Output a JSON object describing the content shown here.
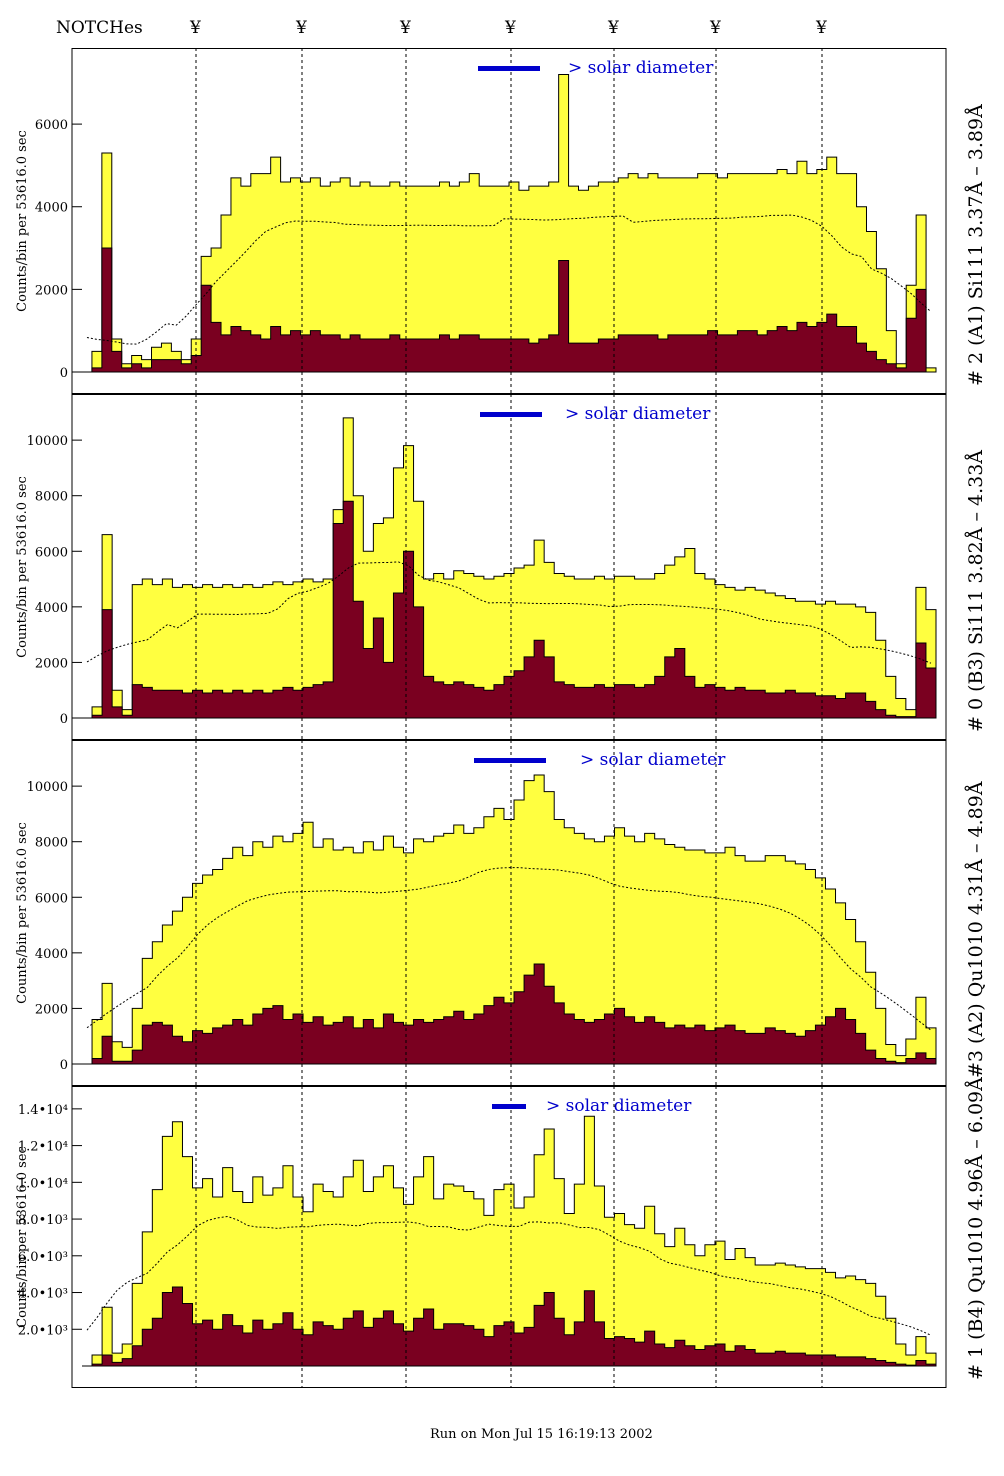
{
  "header": {
    "notches_label": "NOTCHes",
    "notch_symbol": "¥",
    "notch_x": [
      196,
      302,
      406,
      511,
      614,
      716,
      822
    ]
  },
  "footer": {
    "run_text": "Run on Mon Jul 15 16:19:13 2002"
  },
  "colors": {
    "fill": "#ffff40",
    "dark": "#7a0020",
    "line": "#000000",
    "accent": "#0000cc"
  },
  "chart_data": [
    {
      "type": "area",
      "title": "",
      "side_label": "# 2 (A1) Si111  3.37Å – 3.89Å",
      "ylabel": "Counts/bin per  53616.0 sec",
      "annotation": "> solar diameter",
      "yticks": [
        "0",
        "2000",
        "4000",
        "6000"
      ],
      "ylim": [
        0,
        7600
      ],
      "series": [
        {
          "values": [
            0,
            500,
            5300,
            800,
            200,
            400,
            300,
            600,
            700,
            500,
            300,
            800,
            2800,
            3000,
            3800,
            4700,
            4500,
            4800,
            4800,
            5200,
            4600,
            4700,
            4600,
            4700,
            4500,
            4600,
            4700,
            4500,
            4600,
            4500,
            4500,
            4600,
            4500,
            4500,
            4500,
            4500,
            4600,
            4500,
            4600,
            4800,
            4500,
            4500,
            4500,
            4600,
            4400,
            4500,
            4500,
            4600,
            7200,
            4500,
            4400,
            4500,
            4600,
            4600,
            4700,
            4800,
            4700,
            4800,
            4700,
            4700,
            4700,
            4700,
            4800,
            4800,
            4700,
            4800,
            4800,
            4800,
            4800,
            4800,
            4900,
            4800,
            5100,
            4800,
            4900,
            5200,
            4800,
            4800,
            4000,
            3400,
            2500,
            1000,
            200,
            2100,
            3800,
            100
          ]
        },
        {
          "values": [
            0,
            100,
            3000,
            500,
            100,
            200,
            100,
            300,
            300,
            300,
            200,
            400,
            2100,
            1200,
            900,
            1100,
            1000,
            900,
            800,
            1100,
            900,
            1000,
            900,
            1000,
            900,
            900,
            800,
            900,
            800,
            800,
            800,
            900,
            800,
            800,
            800,
            800,
            900,
            800,
            900,
            900,
            800,
            800,
            800,
            800,
            800,
            700,
            800,
            900,
            2700,
            700,
            700,
            700,
            800,
            800,
            900,
            900,
            900,
            900,
            800,
            900,
            900,
            900,
            900,
            1000,
            900,
            900,
            1000,
            1000,
            900,
            1000,
            1100,
            1000,
            1200,
            1100,
            1200,
            1400,
            1100,
            1100,
            700,
            500,
            300,
            200,
            100,
            1300,
            2000,
            0
          ]
        }
      ]
    },
    {
      "type": "area",
      "title": "",
      "side_label": "# 0 (B3) Si111  3.82Å – 4.33Å",
      "ylabel": "Counts/bin per  53616.0 sec",
      "annotation": "> solar diameter",
      "yticks": [
        "0",
        "2000",
        "4000",
        "6000",
        "8000",
        "10000"
      ],
      "ylim": [
        0,
        11300
      ],
      "series": [
        {
          "values": [
            0,
            400,
            6600,
            1000,
            300,
            4800,
            5000,
            4800,
            5000,
            4700,
            4800,
            4700,
            4800,
            4700,
            4800,
            4700,
            4800,
            4700,
            4800,
            4900,
            4800,
            4900,
            5000,
            4900,
            5000,
            7500,
            10800,
            8000,
            6000,
            7000,
            7200,
            9000,
            9800,
            7800,
            5000,
            5200,
            5000,
            5300,
            5200,
            5100,
            5000,
            5100,
            5200,
            5400,
            5500,
            6400,
            5600,
            5200,
            5100,
            5000,
            5000,
            5100,
            5000,
            5100,
            5100,
            5000,
            5000,
            5200,
            5500,
            5800,
            6100,
            5200,
            5000,
            4800,
            4700,
            4600,
            4700,
            4600,
            4500,
            4400,
            4300,
            4200,
            4200,
            4100,
            4200,
            4100,
            4100,
            4000,
            3800,
            2800,
            1500,
            700,
            300,
            4700,
            3900
          ]
        },
        {
          "values": [
            0,
            100,
            3900,
            400,
            100,
            1200,
            1100,
            1000,
            1000,
            1000,
            900,
            1000,
            900,
            1000,
            900,
            1000,
            900,
            1000,
            900,
            1000,
            1100,
            1000,
            1100,
            1200,
            1300,
            7000,
            7800,
            4200,
            2500,
            3600,
            2000,
            4500,
            6000,
            4000,
            1500,
            1300,
            1200,
            1300,
            1200,
            1100,
            1000,
            1200,
            1500,
            1700,
            2200,
            2800,
            2200,
            1300,
            1200,
            1100,
            1100,
            1200,
            1100,
            1200,
            1200,
            1100,
            1200,
            1500,
            2200,
            2500,
            1500,
            1100,
            1200,
            1100,
            1000,
            1100,
            1000,
            1000,
            900,
            900,
            1000,
            900,
            900,
            800,
            800,
            700,
            900,
            900,
            600,
            300,
            100,
            50,
            50,
            2700,
            1800
          ]
        }
      ]
    },
    {
      "type": "area",
      "title": "",
      "side_label": "#3 (A2) Qu1010  4.31Å – 4.89Å",
      "ylabel": "Counts/bin per  53616.0 sec",
      "annotation": "> solar diameter",
      "yticks": [
        "0",
        "2000",
        "4000",
        "6000",
        "8000",
        "10000"
      ],
      "ylim": [
        0,
        11300
      ],
      "series": [
        {
          "values": [
            0,
            1600,
            2900,
            800,
            600,
            2000,
            3800,
            4400,
            5000,
            5500,
            6000,
            6500,
            6800,
            7000,
            7400,
            7800,
            7500,
            8000,
            7800,
            8200,
            8000,
            8300,
            8700,
            7800,
            8100,
            7700,
            7800,
            7600,
            8000,
            7700,
            8200,
            7800,
            7600,
            8100,
            8000,
            8200,
            8300,
            8600,
            8300,
            8500,
            8900,
            9200,
            8800,
            9500,
            10200,
            10400,
            9800,
            8800,
            8500,
            8300,
            8100,
            8000,
            8200,
            8500,
            8200,
            8000,
            8300,
            8100,
            7900,
            7800,
            7700,
            7700,
            7600,
            7600,
            7800,
            7500,
            7300,
            7300,
            7500,
            7500,
            7300,
            7200,
            7000,
            6700,
            6300,
            5800,
            5200,
            4400,
            3300,
            2000,
            700,
            300,
            900,
            2400,
            1300
          ]
        },
        {
          "values": [
            0,
            200,
            1000,
            100,
            100,
            500,
            1400,
            1500,
            1400,
            1000,
            800,
            1200,
            1100,
            1300,
            1400,
            1600,
            1400,
            1800,
            2000,
            2100,
            1600,
            1800,
            1500,
            1700,
            1400,
            1500,
            1700,
            1300,
            1600,
            1300,
            1800,
            1500,
            1400,
            1600,
            1500,
            1600,
            1700,
            1900,
            1600,
            1800,
            2100,
            2400,
            2200,
            2600,
            3200,
            3600,
            2800,
            2200,
            1800,
            1600,
            1500,
            1600,
            1800,
            2000,
            1700,
            1500,
            1700,
            1500,
            1300,
            1400,
            1300,
            1400,
            1200,
            1300,
            1400,
            1200,
            1100,
            1100,
            1300,
            1200,
            1100,
            1000,
            1200,
            1400,
            1700,
            2000,
            1600,
            1100,
            500,
            200,
            100,
            50,
            200,
            400,
            200
          ]
        }
      ]
    },
    {
      "type": "area",
      "title": "",
      "side_label": "# 1 (B4) Qu1010 4.96Å – 6.09Å",
      "ylabel": "Counts/bin per  53616.0 sec",
      "annotation": "> solar diameter",
      "yticks": [
        "2.0•10³",
        "4.0•10³",
        "6.0•10³",
        "8.0•10³",
        "1.0•10⁴",
        "1.2•10⁴",
        "1.4•10⁴"
      ],
      "ylim": [
        0,
        14700
      ],
      "series": [
        {
          "values": [
            0,
            600,
            3200,
            700,
            1200,
            4500,
            7300,
            9600,
            12500,
            13300,
            11400,
            9700,
            10200,
            9200,
            10800,
            9500,
            8900,
            10300,
            9300,
            9700,
            10900,
            9200,
            8400,
            9900,
            9500,
            9200,
            10300,
            11200,
            9500,
            10300,
            10900,
            9700,
            8800,
            10300,
            11400,
            9100,
            9900,
            9800,
            9500,
            9100,
            8200,
            9600,
            9900,
            8600,
            9200,
            11500,
            12900,
            10200,
            8300,
            9900,
            13600,
            9800,
            8100,
            8300,
            7700,
            7500,
            8700,
            7200,
            6500,
            7500,
            6600,
            6000,
            6600,
            6800,
            5800,
            6400,
            5900,
            5500,
            5500,
            5600,
            5500,
            5400,
            5300,
            5300,
            5100,
            4800,
            4900,
            4700,
            4500,
            3800,
            2600,
            1200,
            600,
            1600,
            700
          ]
        },
        {
          "values": [
            0,
            100,
            600,
            200,
            400,
            1100,
            2000,
            2600,
            4000,
            4300,
            3400,
            2300,
            2500,
            2000,
            2800,
            2200,
            1800,
            2500,
            2000,
            2300,
            2900,
            2000,
            1700,
            2400,
            2200,
            2000,
            2600,
            3000,
            2100,
            2600,
            3000,
            2300,
            1900,
            2600,
            3100,
            2000,
            2300,
            2300,
            2200,
            2000,
            1600,
            2200,
            2400,
            1800,
            2100,
            3300,
            4000,
            2600,
            1700,
            2400,
            4100,
            2400,
            1500,
            1600,
            1500,
            1300,
            1900,
            1200,
            1000,
            1400,
            1100,
            900,
            1100,
            1200,
            800,
            1100,
            900,
            700,
            700,
            800,
            700,
            700,
            600,
            600,
            600,
            500,
            500,
            500,
            400,
            300,
            200,
            100,
            50,
            300,
            100
          ]
        }
      ]
    }
  ]
}
